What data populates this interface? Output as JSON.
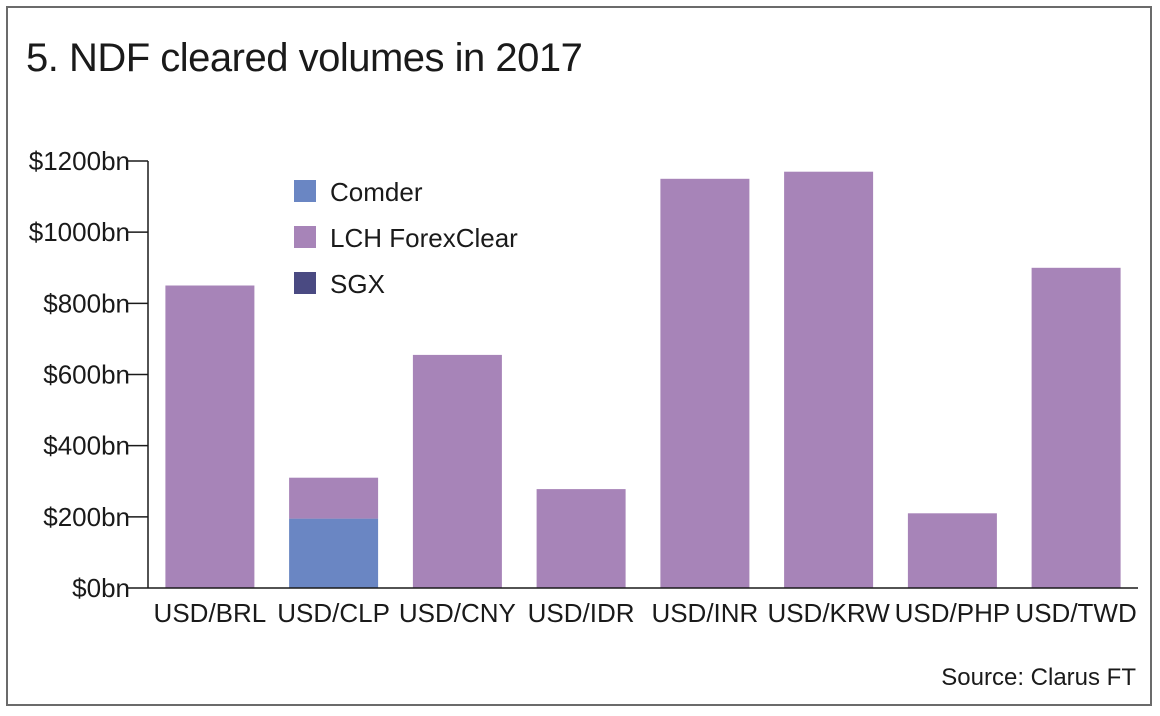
{
  "title": "5. NDF cleared volumes in 2017",
  "source": "Source: Clarus FT",
  "colors": {
    "Comder": "#6a86c3",
    "LCH ForexClear": "#a784b8",
    "SGX": "#4a4a82",
    "axis": "#1a1a1a"
  },
  "chart_data": {
    "type": "bar",
    "stacked": true,
    "title": "5. NDF cleared volumes in 2017",
    "xlabel": "",
    "ylabel": "",
    "ylim": [
      0,
      1200
    ],
    "yticks": [
      0,
      200,
      400,
      600,
      800,
      1000,
      1200
    ],
    "ytick_labels": [
      "$0bn",
      "$200bn",
      "$400bn",
      "$600bn",
      "$800bn",
      "$1000bn",
      "$1200bn"
    ],
    "categories": [
      "USD/BRL",
      "USD/CLP",
      "USD/CNY",
      "USD/IDR",
      "USD/INR",
      "USD/KRW",
      "USD/PHP",
      "USD/TWD"
    ],
    "series": [
      {
        "name": "Comder",
        "values": [
          0,
          195,
          0,
          0,
          0,
          0,
          0,
          0
        ]
      },
      {
        "name": "LCH ForexClear",
        "values": [
          850,
          115,
          655,
          278,
          1150,
          1170,
          210,
          900
        ]
      },
      {
        "name": "SGX",
        "values": [
          0,
          0,
          0,
          0,
          0,
          0,
          0,
          0
        ]
      }
    ],
    "legend": [
      "Comder",
      "LCH ForexClear",
      "SGX"
    ],
    "legend_position": "top-left",
    "grid": false
  }
}
